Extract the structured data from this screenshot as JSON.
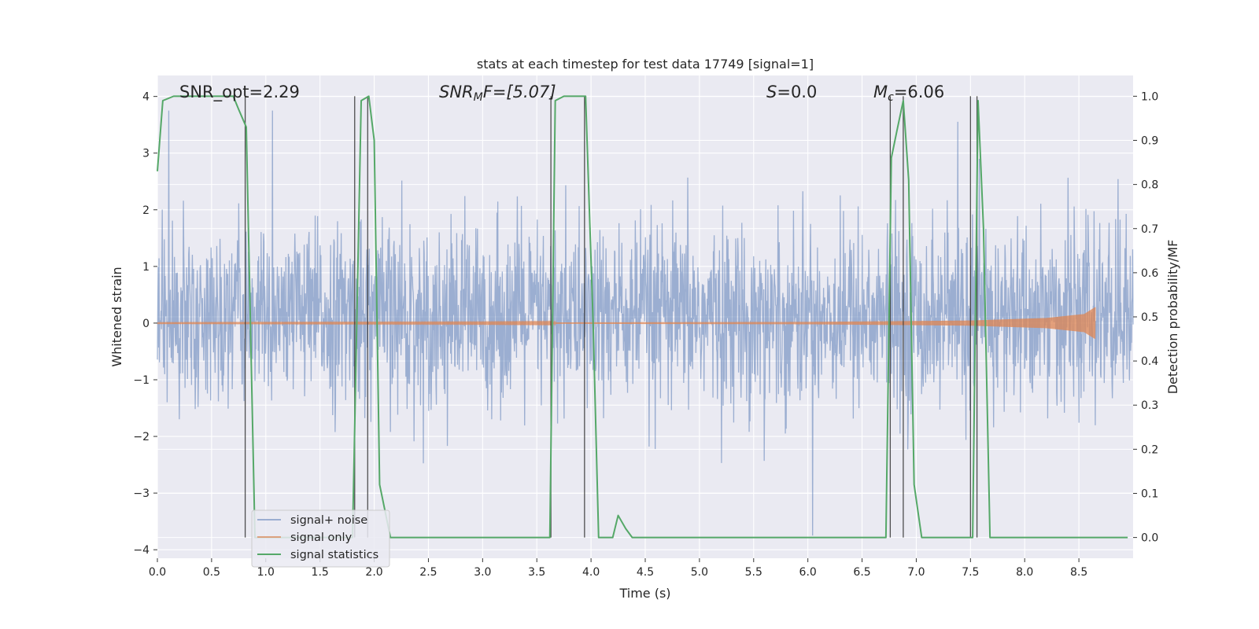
{
  "chart_data": {
    "type": "line",
    "title": "stats at each timestep for test data 17749 [signal=1]",
    "xlabel": "Time (s)",
    "ylabel_left": "Whitened strain",
    "ylabel_right": "Detection probability/MF",
    "xlim": [
      0.0,
      9.0
    ],
    "ylim_left": [
      -4.15,
      4.37
    ],
    "ylim_right": [
      -0.047,
      1.047
    ],
    "xticks": [
      "0.0",
      "0.5",
      "1.0",
      "1.5",
      "2.0",
      "2.5",
      "3.0",
      "3.5",
      "4.0",
      "4.5",
      "5.0",
      "5.5",
      "6.0",
      "6.5",
      "7.0",
      "7.5",
      "8.0",
      "8.5"
    ],
    "yticks_left": [
      "−4",
      "−3",
      "−2",
      "−1",
      "0",
      "1",
      "2",
      "3",
      "4"
    ],
    "yticks_right": [
      "0.0",
      "0.1",
      "0.2",
      "0.3",
      "0.4",
      "0.5",
      "0.6",
      "0.7",
      "0.8",
      "0.9",
      "1.0"
    ],
    "grid": true,
    "legend_position": "lower-left",
    "colors": {
      "background": "#eaeaf2",
      "grid": "#ffffff",
      "noise": "#4c72b0",
      "signal": "#dd8452",
      "statistics": "#55a868",
      "vlines": "#333333"
    },
    "annotations": [
      {
        "id": "snr-opt",
        "text": "SNR_opt=2.29"
      },
      {
        "id": "snr-mf",
        "text": "SNR_MF=[5.07]",
        "prefix": "SNR",
        "sub": "M",
        "suffix": "F=[5.07]"
      },
      {
        "id": "s",
        "text": "S=0.0",
        "italic": "S",
        "rest": "=0.0"
      },
      {
        "id": "mc",
        "text": "M_c=6.06",
        "italic": "M",
        "sub": "c",
        "rest": "=6.06"
      }
    ],
    "series": [
      {
        "name": "signal+ noise",
        "axis": "left",
        "noise_std": 0.78,
        "bias": 0.12,
        "spike_max": 3.75
      },
      {
        "name": "signal only",
        "axis": "left",
        "envelope": [
          [
            0.0,
            0.004
          ],
          [
            3.0,
            0.008
          ],
          [
            6.0,
            0.02
          ],
          [
            7.5,
            0.045
          ],
          [
            8.2,
            0.09
          ],
          [
            8.55,
            0.16
          ],
          [
            8.65,
            0.28
          ]
        ]
      },
      {
        "name": "signal statistics",
        "axis": "right",
        "x": [
          0.0,
          0.05,
          0.15,
          0.3,
          0.6,
          0.7,
          0.75,
          0.82,
          0.9,
          1.8,
          1.88,
          1.95,
          2.0,
          2.05,
          2.15,
          3.5,
          3.62,
          3.67,
          3.75,
          3.85,
          3.95,
          4.02,
          4.07,
          4.2,
          4.25,
          4.32,
          4.38,
          6.6,
          6.72,
          6.77,
          6.82,
          6.88,
          6.93,
          6.98,
          7.05,
          7.45,
          7.52,
          7.57,
          7.62,
          7.68,
          7.75,
          8.95
        ],
        "y": [
          0.83,
          0.99,
          1.0,
          1.0,
          1.0,
          1.0,
          0.97,
          0.93,
          0.0,
          0.0,
          0.99,
          1.0,
          0.9,
          0.12,
          0.0,
          0.0,
          0.0,
          0.99,
          1.0,
          1.0,
          1.0,
          0.48,
          0.0,
          0.0,
          0.05,
          0.02,
          0.0,
          0.0,
          0.0,
          0.86,
          0.92,
          0.99,
          0.81,
          0.12,
          0.0,
          0.0,
          0.0,
          0.99,
          0.7,
          0.0,
          0.0,
          0.0
        ]
      }
    ],
    "vlines": [
      0.81,
      1.82,
      1.94,
      3.63,
      3.94,
      6.76,
      6.88,
      7.5,
      7.56
    ]
  },
  "legend": {
    "entries": [
      "signal+ noise",
      "signal only",
      "signal statistics"
    ]
  }
}
